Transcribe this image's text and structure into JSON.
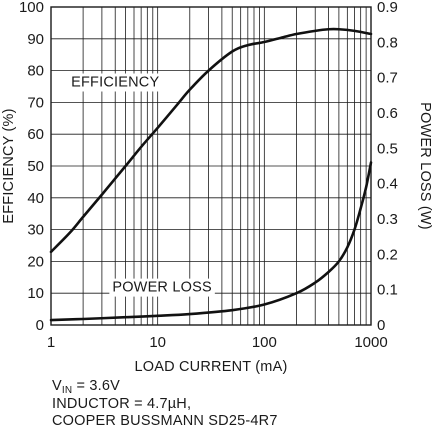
{
  "chart_data": {
    "type": "line",
    "x_scale": "log",
    "xlabel": "LOAD CURRENT (mA)",
    "ylabel_left": "EFFICIENCY (%)",
    "ylabel_right": "POWER LOSS (W)",
    "xlim": [
      1,
      1000
    ],
    "ylim_left": [
      0,
      100
    ],
    "ylim_right": [
      0,
      0.9
    ],
    "x_ticks": [
      {
        "value": 1,
        "label": "1"
      },
      {
        "value": 10,
        "label": "10"
      },
      {
        "value": 100,
        "label": "100"
      },
      {
        "value": 1000,
        "label": "1000"
      }
    ],
    "y_ticks_left": [
      "0",
      "10",
      "20",
      "30",
      "40",
      "50",
      "60",
      "70",
      "80",
      "90",
      "100"
    ],
    "y_ticks_right": [
      "0",
      "0.1",
      "0.2",
      "0.3",
      "0.4",
      "0.5",
      "0.6",
      "0.7",
      "0.8",
      "0.9"
    ],
    "grid": true,
    "series": [
      {
        "name": "EFFICIENCY",
        "axis": "left",
        "x": [
          1,
          1.5,
          2,
          3,
          5,
          7,
          10,
          15,
          20,
          30,
          50,
          70,
          100,
          150,
          200,
          300,
          400,
          500,
          700,
          1000
        ],
        "y": [
          23,
          29,
          34,
          41,
          50,
          56,
          62,
          69,
          74,
          80,
          86,
          88,
          89,
          90.5,
          91.5,
          92.5,
          93,
          93,
          92.5,
          91.5
        ]
      },
      {
        "name": "POWER LOSS",
        "axis": "right",
        "x": [
          1,
          2,
          5,
          10,
          20,
          50,
          100,
          200,
          300,
          400,
          500,
          600,
          700,
          800,
          900,
          1000
        ],
        "y": [
          0.014,
          0.017,
          0.022,
          0.026,
          0.031,
          0.042,
          0.058,
          0.09,
          0.12,
          0.15,
          0.18,
          0.22,
          0.27,
          0.33,
          0.39,
          0.46
        ]
      }
    ],
    "annotations": [
      {
        "text": "EFFICIENCY",
        "x": 4,
        "y": 75
      },
      {
        "text": "POWER LOSS",
        "x": 11,
        "y": 10.5
      }
    ]
  },
  "conditions": {
    "vin_main": "V",
    "vin_sub": "IN",
    "vin_value": " = 3.6V",
    "inductor": "INDUCTOR = 4.7µH,",
    "part": "COOPER BUSSMANN SD25-4R7"
  }
}
